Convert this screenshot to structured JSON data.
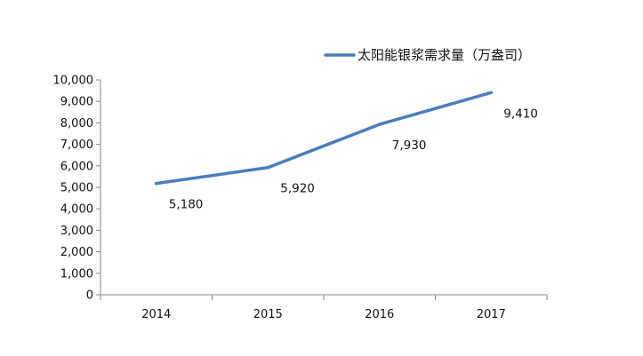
{
  "chart_data": {
    "type": "line",
    "categories": [
      "2014",
      "2015",
      "2016",
      "2017"
    ],
    "series": [
      {
        "name": "太阳能银浆需求量（万盎司）",
        "values": [
          5180,
          5920,
          7930,
          9410
        ]
      }
    ],
    "data_labels": [
      "5,180",
      "5,920",
      "7,930",
      "9,410"
    ],
    "y_ticks": [
      "0",
      "1,000",
      "2,000",
      "3,000",
      "4,000",
      "5,000",
      "6,000",
      "7,000",
      "8,000",
      "9,000",
      "10,000"
    ],
    "ylim": [
      0,
      10000
    ],
    "y_step": 1000,
    "title": "",
    "xlabel": "",
    "ylabel": "",
    "grid": false,
    "legend_position": "top-right",
    "line_color": "#4a7ebb",
    "axis_color": "#868686"
  }
}
